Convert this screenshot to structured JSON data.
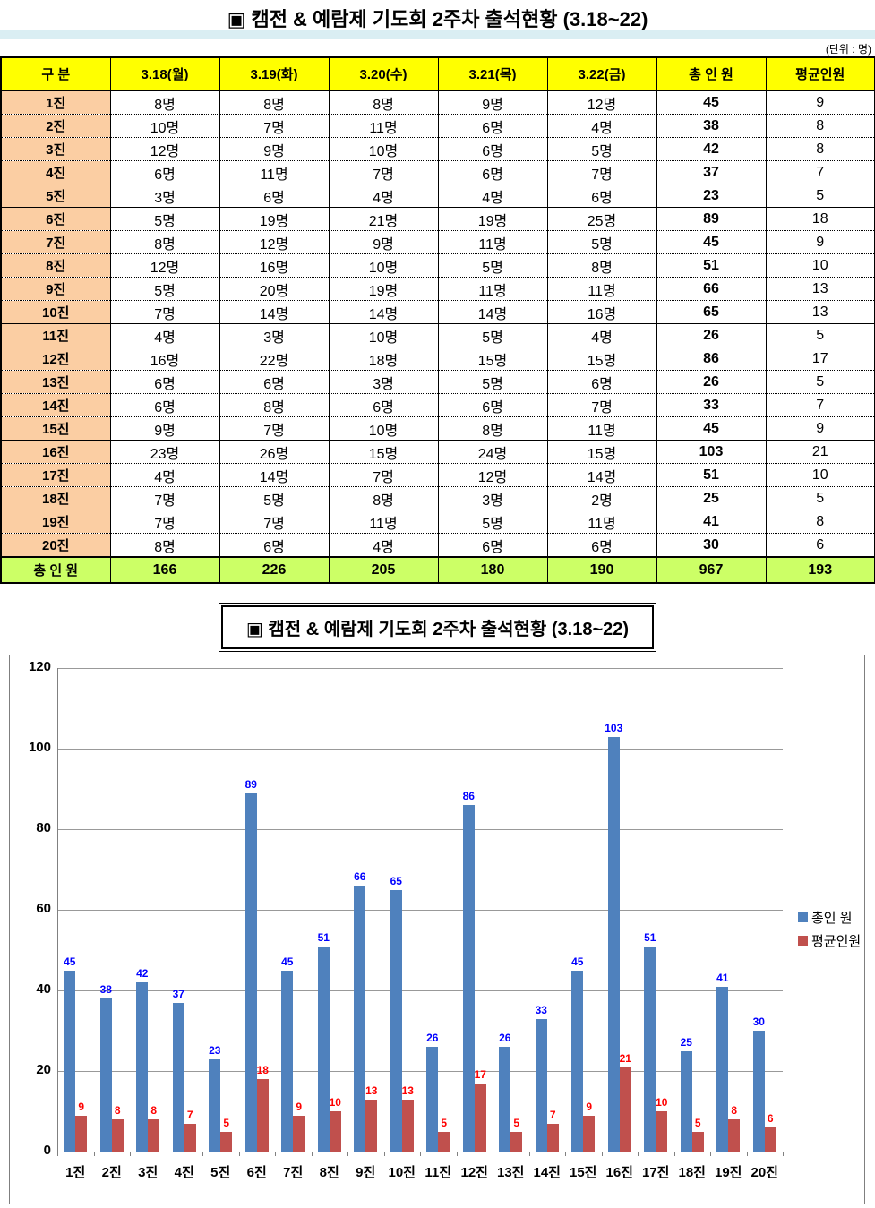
{
  "page": {
    "title": "▣ 캠전 & 예람제 기도회 2주차 출석현황 (3.18~22)",
    "unit_label": "(단위 : 명)"
  },
  "table": {
    "headers": [
      "구   분",
      "3.18(월)",
      "3.19(화)",
      "3.20(수)",
      "3.21(목)",
      "3.22(금)",
      "총 인 원",
      "평균인원"
    ],
    "unit_suffix": "명",
    "rows": [
      {
        "label": "1진",
        "days": [
          8,
          8,
          8,
          9,
          12
        ],
        "total": 45,
        "avg": 9
      },
      {
        "label": "2진",
        "days": [
          10,
          7,
          11,
          6,
          4
        ],
        "total": 38,
        "avg": 8
      },
      {
        "label": "3진",
        "days": [
          12,
          9,
          10,
          6,
          5
        ],
        "total": 42,
        "avg": 8
      },
      {
        "label": "4진",
        "days": [
          6,
          11,
          7,
          6,
          7
        ],
        "total": 37,
        "avg": 7
      },
      {
        "label": "5진",
        "days": [
          3,
          6,
          4,
          4,
          6
        ],
        "total": 23,
        "avg": 5
      },
      {
        "label": "6진",
        "days": [
          5,
          19,
          21,
          19,
          25
        ],
        "total": 89,
        "avg": 18
      },
      {
        "label": "7진",
        "days": [
          8,
          12,
          9,
          11,
          5
        ],
        "total": 45,
        "avg": 9
      },
      {
        "label": "8진",
        "days": [
          12,
          16,
          10,
          5,
          8
        ],
        "total": 51,
        "avg": 10
      },
      {
        "label": "9진",
        "days": [
          5,
          20,
          19,
          11,
          11
        ],
        "total": 66,
        "avg": 13
      },
      {
        "label": "10진",
        "days": [
          7,
          14,
          14,
          14,
          16
        ],
        "total": 65,
        "avg": 13
      },
      {
        "label": "11진",
        "days": [
          4,
          3,
          10,
          5,
          4
        ],
        "total": 26,
        "avg": 5
      },
      {
        "label": "12진",
        "days": [
          16,
          22,
          18,
          15,
          15
        ],
        "total": 86,
        "avg": 17
      },
      {
        "label": "13진",
        "days": [
          6,
          6,
          3,
          5,
          6
        ],
        "total": 26,
        "avg": 5
      },
      {
        "label": "14진",
        "days": [
          6,
          8,
          6,
          6,
          7
        ],
        "total": 33,
        "avg": 7
      },
      {
        "label": "15진",
        "days": [
          9,
          7,
          10,
          8,
          11
        ],
        "total": 45,
        "avg": 9
      },
      {
        "label": "16진",
        "days": [
          23,
          26,
          15,
          24,
          15
        ],
        "total": 103,
        "avg": 21
      },
      {
        "label": "17진",
        "days": [
          4,
          14,
          7,
          12,
          14
        ],
        "total": 51,
        "avg": 10
      },
      {
        "label": "18진",
        "days": [
          7,
          5,
          8,
          3,
          2
        ],
        "total": 25,
        "avg": 5
      },
      {
        "label": "19진",
        "days": [
          7,
          7,
          11,
          5,
          11
        ],
        "total": 41,
        "avg": 8
      },
      {
        "label": "20진",
        "days": [
          8,
          6,
          4,
          6,
          6
        ],
        "total": 30,
        "avg": 6
      }
    ],
    "footer": {
      "label": "총 인 원",
      "days": [
        166,
        226,
        205,
        180,
        190
      ],
      "total": 967,
      "avg": 193
    },
    "colors": {
      "header_bg": "#FFFF00",
      "row_label_bg": "#FBCEA3",
      "footer_bg": "#CCFF66",
      "band": "#DAEEF3"
    }
  },
  "chart": {
    "title": "▣ 캠전 & 예람제 기도회 2주차 출석현황 (3.18~22)"
  },
  "chart_data": {
    "type": "bar",
    "title": "▣ 캠전 & 예람제 기도회 2주차 출석현황 (3.18~22)",
    "categories": [
      "1진",
      "2진",
      "3진",
      "4진",
      "5진",
      "6진",
      "7진",
      "8진",
      "9진",
      "10진",
      "11진",
      "12진",
      "13진",
      "14진",
      "15진",
      "16진",
      "17진",
      "18진",
      "19진",
      "20진"
    ],
    "series": [
      {
        "name": "총인 원",
        "color": "#4F81BD",
        "label_color": "#0000FF",
        "values": [
          45,
          38,
          42,
          37,
          23,
          89,
          45,
          51,
          66,
          65,
          26,
          86,
          26,
          33,
          45,
          103,
          51,
          25,
          41,
          30
        ]
      },
      {
        "name": "평균인원",
        "color": "#C0504D",
        "label_color": "#FF0000",
        "values": [
          9,
          8,
          8,
          7,
          5,
          18,
          9,
          10,
          13,
          13,
          5,
          17,
          5,
          7,
          9,
          21,
          10,
          5,
          8,
          6
        ]
      }
    ],
    "xlabel": "",
    "ylabel": "",
    "ylim": [
      0,
      120
    ],
    "ytick_step": 20,
    "grid": true,
    "legend_position": "right",
    "data_labels": true
  }
}
